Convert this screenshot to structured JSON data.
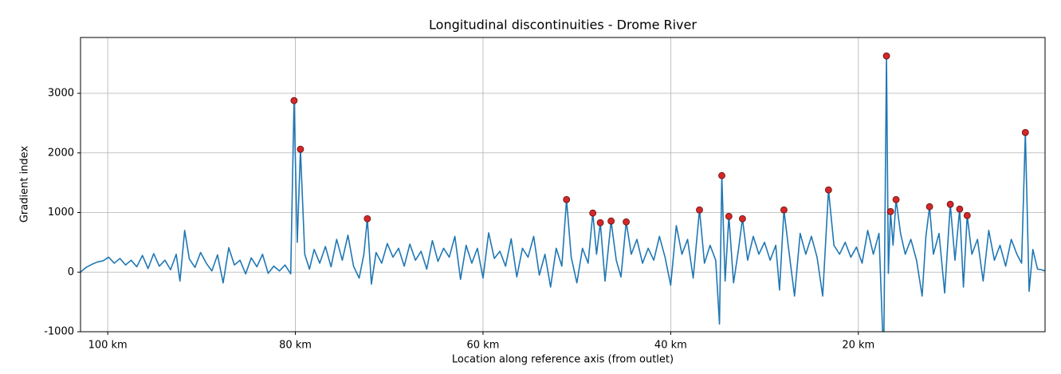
{
  "chart_data": {
    "type": "line",
    "title": "Longitudinal discontinuities - Drome River",
    "xlabel": "Location along reference axis (from outlet)",
    "ylabel": "Gradient index",
    "xlim": [
      102.9,
      0.1
    ],
    "ylim": [
      -1000,
      3937
    ],
    "xticks": [
      {
        "value": 100,
        "label": "100 km"
      },
      {
        "value": 80,
        "label": "80 km"
      },
      {
        "value": 60,
        "label": "60 km"
      },
      {
        "value": 40,
        "label": "40 km"
      },
      {
        "value": 20,
        "label": "20 km"
      }
    ],
    "yticks": [
      -1000,
      0,
      1000,
      2000,
      3000
    ],
    "grid": true,
    "series": [
      {
        "type": "line",
        "color": "#1f77b4",
        "x": [
          102.9,
          102.3,
          101.7,
          101.1,
          100.5,
          99.9,
          99.3,
          98.7,
          98.1,
          97.5,
          96.9,
          96.3,
          95.7,
          95.1,
          94.5,
          93.9,
          93.3,
          92.7,
          92.3,
          91.8,
          91.3,
          90.7,
          90.1,
          89.5,
          88.9,
          88.3,
          87.7,
          87.1,
          86.5,
          85.9,
          85.3,
          84.7,
          84.1,
          83.5,
          82.9,
          82.3,
          81.7,
          81.1,
          80.5,
          80.14,
          79.8,
          79.46,
          79.0,
          78.5,
          78.0,
          77.4,
          76.8,
          76.2,
          75.6,
          75.0,
          74.4,
          73.8,
          73.2,
          72.7,
          72.33,
          71.9,
          71.4,
          70.8,
          70.2,
          69.6,
          69.0,
          68.4,
          67.8,
          67.2,
          66.6,
          66.0,
          65.4,
          64.8,
          64.2,
          63.6,
          63.0,
          62.4,
          61.8,
          61.2,
          60.6,
          60.0,
          59.4,
          58.8,
          58.2,
          57.6,
          57.0,
          56.4,
          55.8,
          55.2,
          54.6,
          54.0,
          53.4,
          52.8,
          52.2,
          51.6,
          51.1,
          50.6,
          50.0,
          49.4,
          48.8,
          48.3,
          47.9,
          47.5,
          47.0,
          46.35,
          45.8,
          45.3,
          44.74,
          44.2,
          43.6,
          43.0,
          42.4,
          41.8,
          41.2,
          40.6,
          40.0,
          39.4,
          38.8,
          38.2,
          37.6,
          36.93,
          36.4,
          35.8,
          35.2,
          34.8,
          34.55,
          34.2,
          33.8,
          33.3,
          32.8,
          32.35,
          31.8,
          31.2,
          30.6,
          30.0,
          29.4,
          28.8,
          28.4,
          27.93,
          27.4,
          26.8,
          26.2,
          25.6,
          25.0,
          24.4,
          23.8,
          23.18,
          22.6,
          22.0,
          21.4,
          20.8,
          20.2,
          19.6,
          19.0,
          18.4,
          17.8,
          17.3,
          17.0,
          16.8,
          16.57,
          16.3,
          15.98,
          15.5,
          15.0,
          14.4,
          13.8,
          13.2,
          12.8,
          12.41,
          12.0,
          11.4,
          10.8,
          10.2,
          9.7,
          9.2,
          8.8,
          8.4,
          7.9,
          7.3,
          6.7,
          6.1,
          5.5,
          4.9,
          4.3,
          3.7,
          3.1,
          2.6,
          2.2,
          1.8,
          1.4,
          0.9,
          0.5,
          0.1
        ],
        "values": [
          0,
          80,
          130,
          170,
          190,
          250,
          150,
          230,
          120,
          200,
          90,
          280,
          60,
          310,
          100,
          200,
          40,
          300,
          -150,
          700,
          220,
          80,
          330,
          150,
          20,
          290,
          -180,
          410,
          120,
          200,
          -30,
          240,
          90,
          300,
          -20,
          100,
          20,
          120,
          -30,
          2878,
          500,
          2062,
          300,
          50,
          380,
          150,
          430,
          90,
          550,
          200,
          620,
          100,
          -100,
          300,
          897,
          -200,
          330,
          150,
          480,
          250,
          400,
          100,
          470,
          200,
          350,
          50,
          530,
          180,
          400,
          250,
          600,
          -120,
          450,
          150,
          400,
          -100,
          660,
          230,
          350,
          100,
          560,
          -80,
          400,
          250,
          600,
          -50,
          300,
          -250,
          400,
          100,
          1218,
          250,
          -180,
          400,
          150,
          991,
          300,
          830,
          -150,
          857,
          200,
          -80,
          843,
          300,
          550,
          150,
          400,
          200,
          600,
          250,
          -220,
          780,
          300,
          550,
          -100,
          1044,
          150,
          450,
          200,
          -870,
          1620,
          -150,
          937,
          -180,
          350,
          897,
          200,
          600,
          300,
          500,
          200,
          450,
          -300,
          1044,
          350,
          -400,
          650,
          300,
          600,
          250,
          -400,
          1379,
          450,
          300,
          500,
          250,
          420,
          150,
          700,
          300,
          650,
          -1500,
          3628,
          -20,
          1017,
          450,
          1218,
          650,
          300,
          550,
          200,
          -400,
          600,
          1098,
          300,
          650,
          -350,
          1138,
          200,
          1058,
          -250,
          950,
          300,
          550,
          -150,
          700,
          200,
          450,
          100,
          550,
          300,
          150,
          2343,
          -320,
          380,
          50,
          40,
          20
        ]
      },
      {
        "type": "scatter",
        "color": "#d62728",
        "x": [
          80.14,
          79.46,
          72.33,
          51.1,
          48.3,
          47.5,
          46.35,
          44.74,
          36.93,
          34.55,
          33.8,
          32.35,
          27.93,
          23.18,
          17.0,
          16.57,
          15.98,
          12.41,
          10.2,
          9.2,
          8.4,
          2.2
        ],
        "values": [
          2878,
          2062,
          897,
          1218,
          991,
          830,
          857,
          843,
          1044,
          1620,
          937,
          897,
          1044,
          1379,
          3628,
          1017,
          1218,
          1098,
          1138,
          1058,
          950,
          2343
        ]
      }
    ]
  }
}
